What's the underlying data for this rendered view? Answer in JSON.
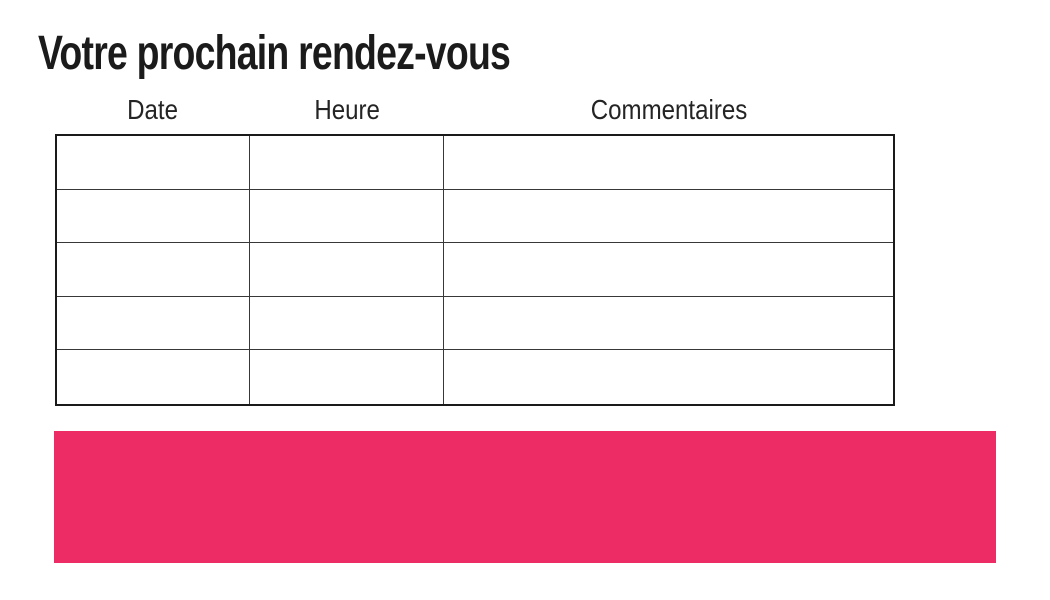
{
  "title": "Votre prochain rendez-vous",
  "table": {
    "headers": [
      "Date",
      "Heure",
      "Commentaires"
    ],
    "rows": [
      [
        "",
        "",
        ""
      ],
      [
        "",
        "",
        ""
      ],
      [
        "",
        "",
        ""
      ],
      [
        "",
        "",
        ""
      ],
      [
        "",
        "",
        ""
      ]
    ]
  },
  "banner": {
    "color": "#ED2B64"
  },
  "colors": {
    "title_text": "#1b1b1b",
    "header_text": "#242424",
    "table_border": "#1a1a1a",
    "background": "#ffffff"
  }
}
